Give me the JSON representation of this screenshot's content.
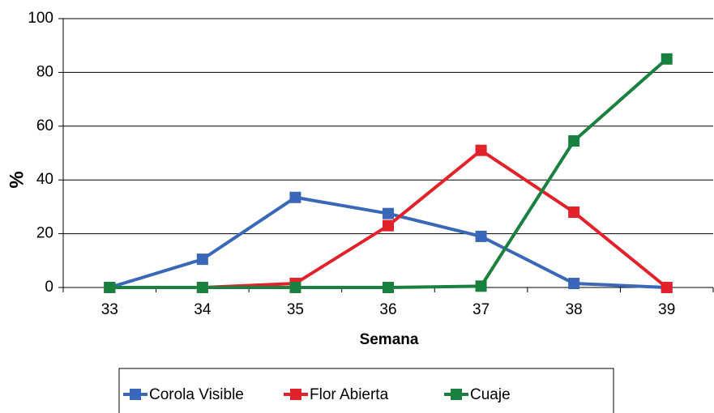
{
  "chart_data": {
    "type": "line",
    "categories": [
      "33",
      "34",
      "35",
      "36",
      "37",
      "38",
      "39"
    ],
    "series": [
      {
        "name": "Corola Visible",
        "color": "#3a67b8",
        "values": [
          0,
          10.5,
          33.5,
          27.5,
          19,
          1.5,
          0
        ]
      },
      {
        "name": "Flor Abierta",
        "color": "#e2222a",
        "values": [
          0,
          0,
          1.5,
          23,
          51,
          28,
          0
        ]
      },
      {
        "name": "Cuaje",
        "color": "#1a8040",
        "values": [
          0,
          0,
          0,
          0,
          0.5,
          54.5,
          85
        ]
      }
    ],
    "ylim": [
      0,
      100
    ],
    "yticks": [
      0,
      20,
      40,
      60,
      80,
      100
    ],
    "grid": true,
    "xlabel": "Semana",
    "ylabel": "%",
    "legend": "bottom"
  }
}
